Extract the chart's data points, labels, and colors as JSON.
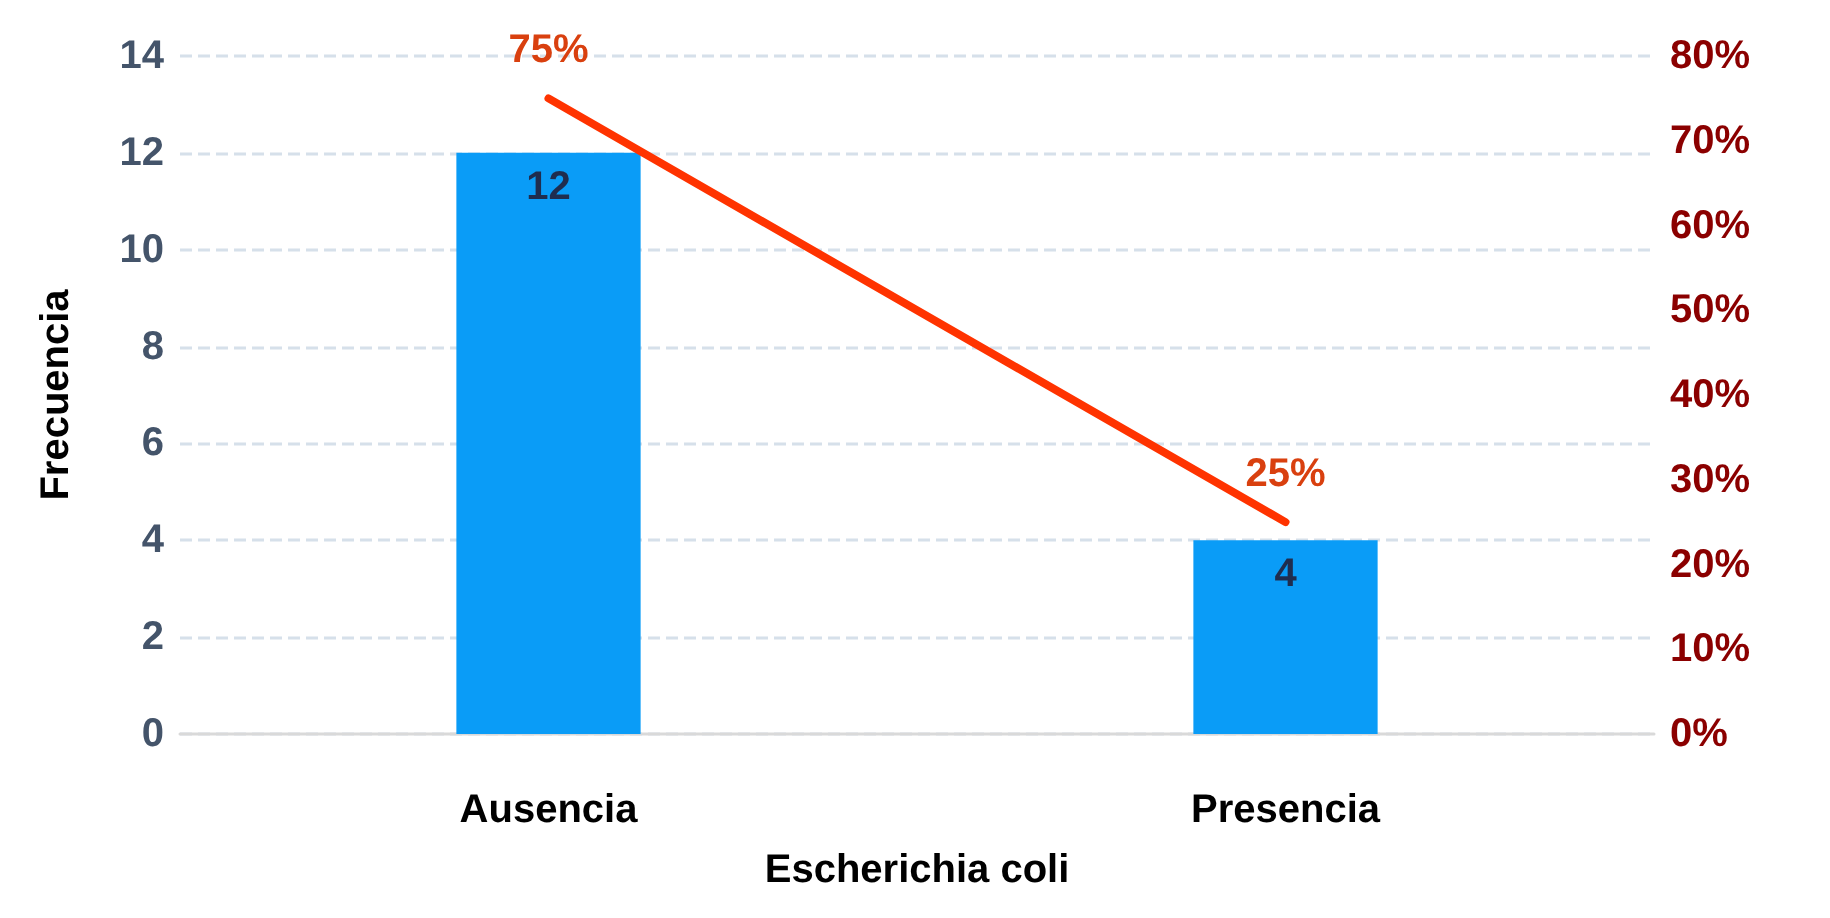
{
  "chart_data": {
    "type": "bar",
    "xlabel": "Escherichia coli",
    "ylabel": "Frecuencia",
    "categories": [
      "Ausencia",
      "Presencia"
    ],
    "series": [
      {
        "color": "#0a9cf7",
        "values": [
          12,
          4
        ],
        "value_labels": [
          "12",
          "4"
        ]
      },
      {
        "type": "line",
        "axis": "y2",
        "color": "#ff3300",
        "values": [
          75,
          25
        ],
        "value_labels": [
          "75%",
          "25%"
        ]
      }
    ],
    "ylim": [
      0,
      14
    ],
    "yticks": [
      0,
      2,
      4,
      6,
      8,
      10,
      12,
      14
    ],
    "y2lim": [
      0,
      80
    ],
    "y2ticks": [
      {
        "value": 0,
        "label": "0%"
      },
      {
        "value": 10,
        "label": "10%"
      },
      {
        "value": 20,
        "label": "20%"
      },
      {
        "value": 30,
        "label": "30%"
      },
      {
        "value": 40,
        "label": "40%"
      },
      {
        "value": 50,
        "label": "50%"
      },
      {
        "value": 60,
        "label": "60%"
      },
      {
        "value": 70,
        "label": "70%"
      },
      {
        "value": 80,
        "label": "80%"
      }
    ],
    "grid": "y",
    "marker": "none",
    "line_style": "solid"
  }
}
